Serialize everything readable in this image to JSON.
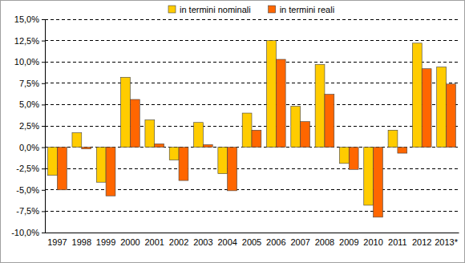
{
  "chart_data": {
    "type": "bar",
    "categories": [
      "1997",
      "1998",
      "1999",
      "2000",
      "2001",
      "2002",
      "2003",
      "2004",
      "2005",
      "2006",
      "2007",
      "2008",
      "2009",
      "2010",
      "2011",
      "2012",
      "2013*"
    ],
    "series": [
      {
        "name": "in termini nominali",
        "color": "#ffcc00",
        "values": [
          -3.3,
          1.7,
          -4.1,
          8.2,
          3.2,
          -1.5,
          2.9,
          -3.1,
          4.0,
          12.5,
          4.8,
          9.7,
          -1.9,
          -6.8,
          2.0,
          12.2,
          9.4
        ]
      },
      {
        "name": "in termini reali",
        "color": "#ff6600",
        "values": [
          -5.0,
          -0.2,
          -5.7,
          5.6,
          0.4,
          -3.9,
          0.3,
          -5.1,
          2.0,
          10.3,
          3.0,
          6.2,
          -2.6,
          -8.2,
          -0.7,
          9.2,
          7.4
        ]
      }
    ],
    "ylim": [
      -10,
      15
    ],
    "yticks": [
      {
        "value": -10,
        "label": "-10,0%"
      },
      {
        "value": -7.5,
        "label": "-7,5%"
      },
      {
        "value": -5,
        "label": "-5,0%"
      },
      {
        "value": -2.5,
        "label": "-2,5%"
      },
      {
        "value": 0,
        "label": "0,0%"
      },
      {
        "value": 2.5,
        "label": "2,5%"
      },
      {
        "value": 5,
        "label": "5,0%"
      },
      {
        "value": 7.5,
        "label": "7,5%"
      },
      {
        "value": 10,
        "label": "10,0%"
      },
      {
        "value": 12.5,
        "label": "12,5%"
      },
      {
        "value": 15,
        "label": "15,0%"
      }
    ],
    "grid": true,
    "legend": "top"
  }
}
